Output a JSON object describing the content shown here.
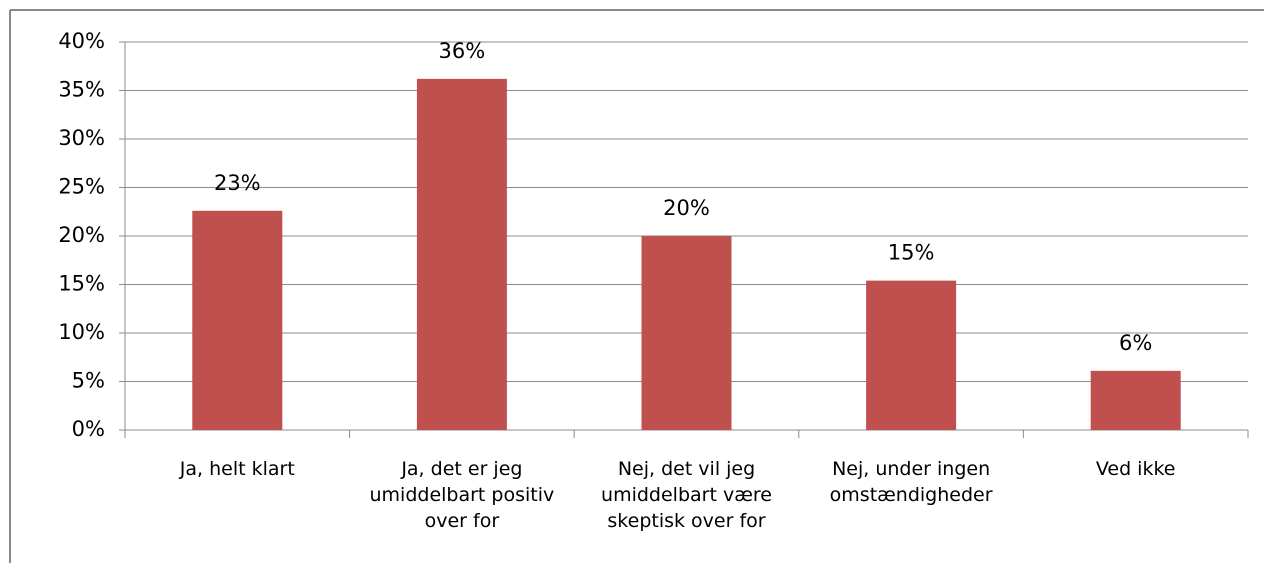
{
  "chart_data": {
    "type": "bar",
    "categories": [
      "Ja, helt klart",
      "Ja, det er jeg umiddelbart positiv over for",
      "Nej, det vil jeg umiddelbart være skeptisk over for",
      "Nej, under ingen omstændigheder",
      "Ved ikke"
    ],
    "values": [
      22.6,
      36.2,
      20,
      15.4,
      6.1
    ],
    "value_labels": [
      "23%",
      "36%",
      "20%",
      "15%",
      "6%"
    ],
    "color": "#c0504d",
    "ylim": [
      0,
      40
    ],
    "yticks": [
      {
        "value": 0,
        "label": "0%"
      },
      {
        "value": 5,
        "label": "5%"
      },
      {
        "value": 10,
        "label": "10%"
      },
      {
        "value": 15,
        "label": "15%"
      },
      {
        "value": 20,
        "label": "20%"
      },
      {
        "value": 25,
        "label": "25%"
      },
      {
        "value": 30,
        "label": "30%"
      },
      {
        "value": 35,
        "label": "35%"
      },
      {
        "value": 40,
        "label": "40%"
      }
    ],
    "grid": true
  }
}
